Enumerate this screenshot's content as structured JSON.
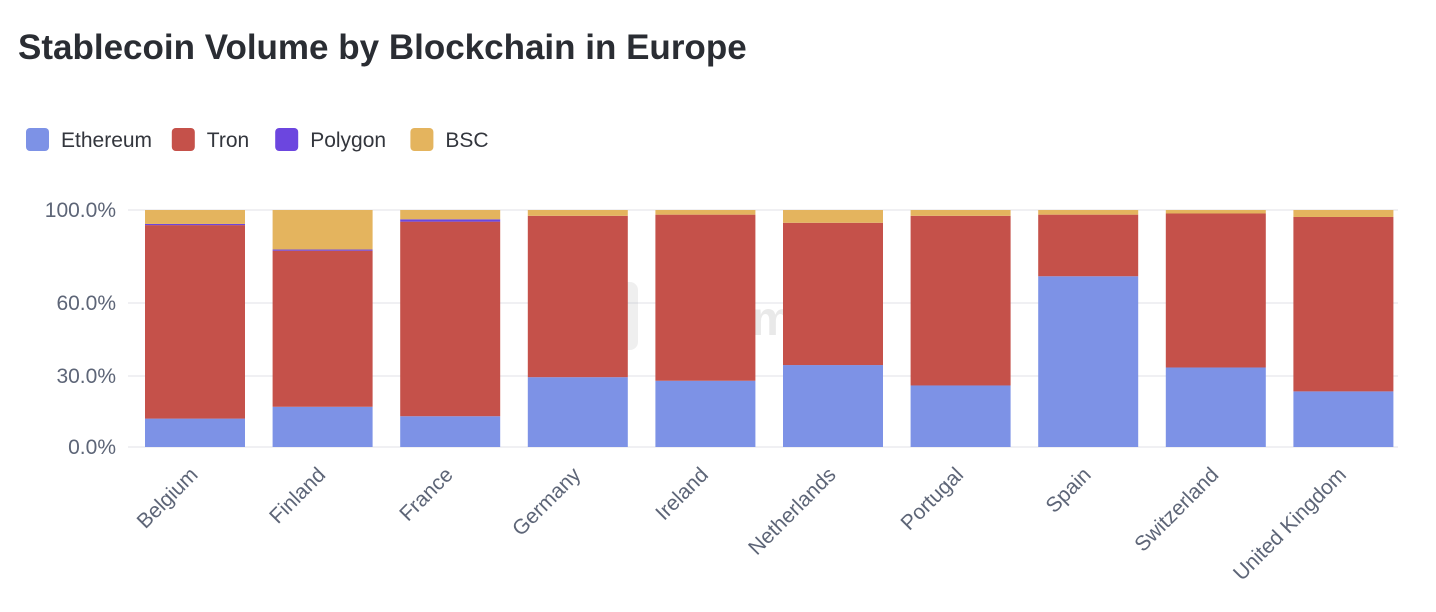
{
  "chart_data": {
    "type": "bar",
    "stacked": true,
    "title": "Stablecoin Volume by Blockchain in Europe",
    "categories": [
      "Belgium",
      "Finland",
      "France",
      "Germany",
      "Ireland",
      "Netherlands",
      "Portugal",
      "Spain",
      "Switzerland",
      "United Kingdom"
    ],
    "series": [
      {
        "name": "Ethereum",
        "color": "#7d92e6",
        "values": [
          12,
          17,
          13,
          29.5,
          28,
          34.5,
          26,
          71.5,
          33.5,
          23.5
        ]
      },
      {
        "name": "Tron",
        "color": "#c5514a",
        "values": [
          81.5,
          65.5,
          82,
          68,
          70,
          60,
          71.5,
          26.5,
          65,
          73.5
        ]
      },
      {
        "name": "Polygon",
        "color": "#6c46df",
        "values": [
          0.5,
          0.5,
          1,
          0,
          0,
          0,
          0,
          0,
          0,
          0
        ]
      },
      {
        "name": "BSC",
        "color": "#e4b45e",
        "values": [
          6,
          17,
          4,
          2.5,
          2,
          5.5,
          2.5,
          2,
          1.5,
          3
        ]
      }
    ],
    "yticks": [
      "0.0%",
      "30.0%",
      "60.0%",
      "100.0%"
    ],
    "ytick_values": [
      0,
      30,
      60,
      100
    ],
    "ylim": [
      0,
      100
    ],
    "xlabel": "",
    "ylabel": "",
    "legend_position": "top-left",
    "grid": true,
    "watermark": "Artemis"
  }
}
